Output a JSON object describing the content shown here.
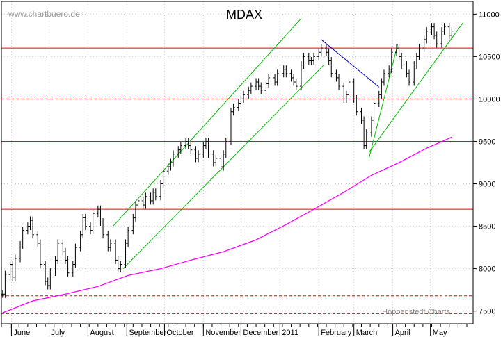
{
  "chart_data": {
    "type": "line",
    "title": "MDAX",
    "watermark": "www.chartbuero.de",
    "source_note": "Hoppenstedt Charts",
    "ylim": [
      7350,
      11150
    ],
    "y_ticks": [
      7500,
      8000,
      8500,
      9000,
      9500,
      10000,
      10500,
      11000
    ],
    "x_labels": [
      "June",
      "July",
      "August",
      "September",
      "October",
      "November",
      "December",
      "2011",
      "February",
      "March",
      "April",
      "May"
    ],
    "series": [
      {
        "kind": "ohlc-bars",
        "color": "#000000",
        "x": [
          "2010-05-25",
          "2010-05-27",
          "2010-05-31",
          "2010-06-02",
          "2010-06-04",
          "2010-06-08",
          "2010-06-10",
          "2010-06-14",
          "2010-06-16",
          "2010-06-18",
          "2010-06-22",
          "2010-06-24",
          "2010-06-28",
          "2010-06-30",
          "2010-07-02",
          "2010-07-06",
          "2010-07-08",
          "2010-07-12",
          "2010-07-14",
          "2010-07-16",
          "2010-07-20",
          "2010-07-22",
          "2010-07-26",
          "2010-07-28",
          "2010-07-30",
          "2010-08-03",
          "2010-08-05",
          "2010-08-09",
          "2010-08-11",
          "2010-08-13",
          "2010-08-17",
          "2010-08-19",
          "2010-08-23",
          "2010-08-25",
          "2010-08-27",
          "2010-08-31",
          "2010-09-02",
          "2010-09-06",
          "2010-09-08",
          "2010-09-10",
          "2010-09-14",
          "2010-09-16",
          "2010-09-20",
          "2010-09-22",
          "2010-09-24",
          "2010-09-28",
          "2010-09-30",
          "2010-10-04",
          "2010-10-06",
          "2010-10-08",
          "2010-10-12",
          "2010-10-14",
          "2010-10-18",
          "2010-10-20",
          "2010-10-22",
          "2010-10-26",
          "2010-10-28",
          "2010-11-01",
          "2010-11-03",
          "2010-11-05",
          "2010-11-09",
          "2010-11-11",
          "2010-11-15",
          "2010-11-17",
          "2010-11-19",
          "2010-11-23",
          "2010-11-25",
          "2010-11-29",
          "2010-12-01",
          "2010-12-03",
          "2010-12-07",
          "2010-12-09",
          "2010-12-13",
          "2010-12-15",
          "2010-12-17",
          "2010-12-21",
          "2010-12-23",
          "2010-12-28",
          "2010-12-30",
          "2011-01-04",
          "2011-01-06",
          "2011-01-10",
          "2011-01-12",
          "2011-01-14",
          "2011-01-18",
          "2011-01-20",
          "2011-01-24",
          "2011-01-26",
          "2011-01-28",
          "2011-02-01",
          "2011-02-03",
          "2011-02-07",
          "2011-02-09",
          "2011-02-11",
          "2011-02-15",
          "2011-02-17",
          "2011-02-21",
          "2011-02-23",
          "2011-02-25",
          "2011-03-01",
          "2011-03-03",
          "2011-03-07",
          "2011-03-09",
          "2011-03-11",
          "2011-03-15",
          "2011-03-17",
          "2011-03-21",
          "2011-03-23",
          "2011-03-25",
          "2011-03-29",
          "2011-03-31",
          "2011-04-04",
          "2011-04-06",
          "2011-04-08",
          "2011-04-12",
          "2011-04-14",
          "2011-04-18",
          "2011-04-20",
          "2011-04-22",
          "2011-04-26",
          "2011-04-28",
          "2011-05-02",
          "2011-05-04",
          "2011-05-06",
          "2011-05-10",
          "2011-05-12",
          "2011-05-16",
          "2011-05-18"
        ],
        "close": [
          7700,
          7930,
          8050,
          7900,
          8120,
          8280,
          8450,
          8500,
          8570,
          8400,
          8300,
          8050,
          7850,
          7800,
          7960,
          8100,
          8300,
          8200,
          8100,
          7950,
          8050,
          8250,
          8400,
          8600,
          8500,
          8450,
          8650,
          8700,
          8550,
          8400,
          8250,
          8300,
          8100,
          8000,
          8050,
          8300,
          8450,
          8600,
          8750,
          8800,
          8750,
          8850,
          8800,
          8900,
          8850,
          9000,
          9150,
          9200,
          9250,
          9350,
          9400,
          9450,
          9500,
          9450,
          9400,
          9300,
          9350,
          9450,
          9500,
          9350,
          9250,
          9300,
          9200,
          9350,
          9500,
          9850,
          9900,
          9950,
          10000,
          10050,
          10100,
          10150,
          10200,
          10150,
          10100,
          10180,
          10250,
          10200,
          10300,
          10350,
          10300,
          10250,
          10200,
          10150,
          10400,
          10500,
          10450,
          10450,
          10500,
          10550,
          10600,
          10550,
          10450,
          10300,
          10250,
          10150,
          10000,
          10050,
          10200,
          10000,
          9850,
          9750,
          9450,
          9600,
          9750,
          9950,
          10050,
          10200,
          10300,
          10350,
          10550,
          10600,
          10500,
          10400,
          10300,
          10200,
          10400,
          10500,
          10600,
          10700,
          10800,
          10850,
          10750,
          10650,
          10800,
          10850,
          10750,
          10800
        ]
      },
      {
        "kind": "moving-average",
        "color": "#ff00ff",
        "x": [
          "2010-05-25",
          "2010-06-18",
          "2010-07-14",
          "2010-08-09",
          "2010-09-02",
          "2010-09-28",
          "2010-10-22",
          "2010-11-17",
          "2010-12-13",
          "2011-01-06",
          "2011-01-28",
          "2011-02-21",
          "2011-03-15",
          "2011-04-06",
          "2011-04-28",
          "2011-05-18"
        ],
        "y": [
          7480,
          7620,
          7700,
          7790,
          7920,
          8000,
          8100,
          8200,
          8340,
          8520,
          8700,
          8900,
          9100,
          9250,
          9420,
          9550
        ]
      }
    ],
    "horizontal_lines": [
      {
        "y": 10600,
        "style": "solid",
        "color": "#ff0000"
      },
      {
        "y": 10000,
        "style": "dashed",
        "color": "#ff0000"
      },
      {
        "y": 9500,
        "style": "solid",
        "color": "#ff0000"
      },
      {
        "y": 8700,
        "style": "solid",
        "color": "#ff0000"
      },
      {
        "y": 7680,
        "style": "dashed",
        "color": "#ff0000"
      },
      {
        "y": 7470,
        "style": "dashed",
        "color": "#ff0000"
      }
    ],
    "trend_lines": [
      {
        "color": "#00bb00",
        "x": [
          "2010-08-21",
          "2011-01-18"
        ],
        "y": [
          8500,
          10950
        ]
      },
      {
        "color": "#00bb00",
        "x": [
          "2010-08-29",
          "2011-02-05"
        ],
        "y": [
          8000,
          10400
        ]
      },
      {
        "color": "#00bb00",
        "x": [
          "2011-03-13",
          "2011-04-05"
        ],
        "y": [
          9300,
          10650
        ]
      },
      {
        "color": "#00bb00",
        "x": [
          "2011-03-13",
          "2011-05-27"
        ],
        "y": [
          9370,
          10900
        ]
      },
      {
        "color": "#0000bb",
        "x": [
          "2011-02-03",
          "2011-03-21"
        ],
        "y": [
          10700,
          10140
        ]
      }
    ]
  }
}
